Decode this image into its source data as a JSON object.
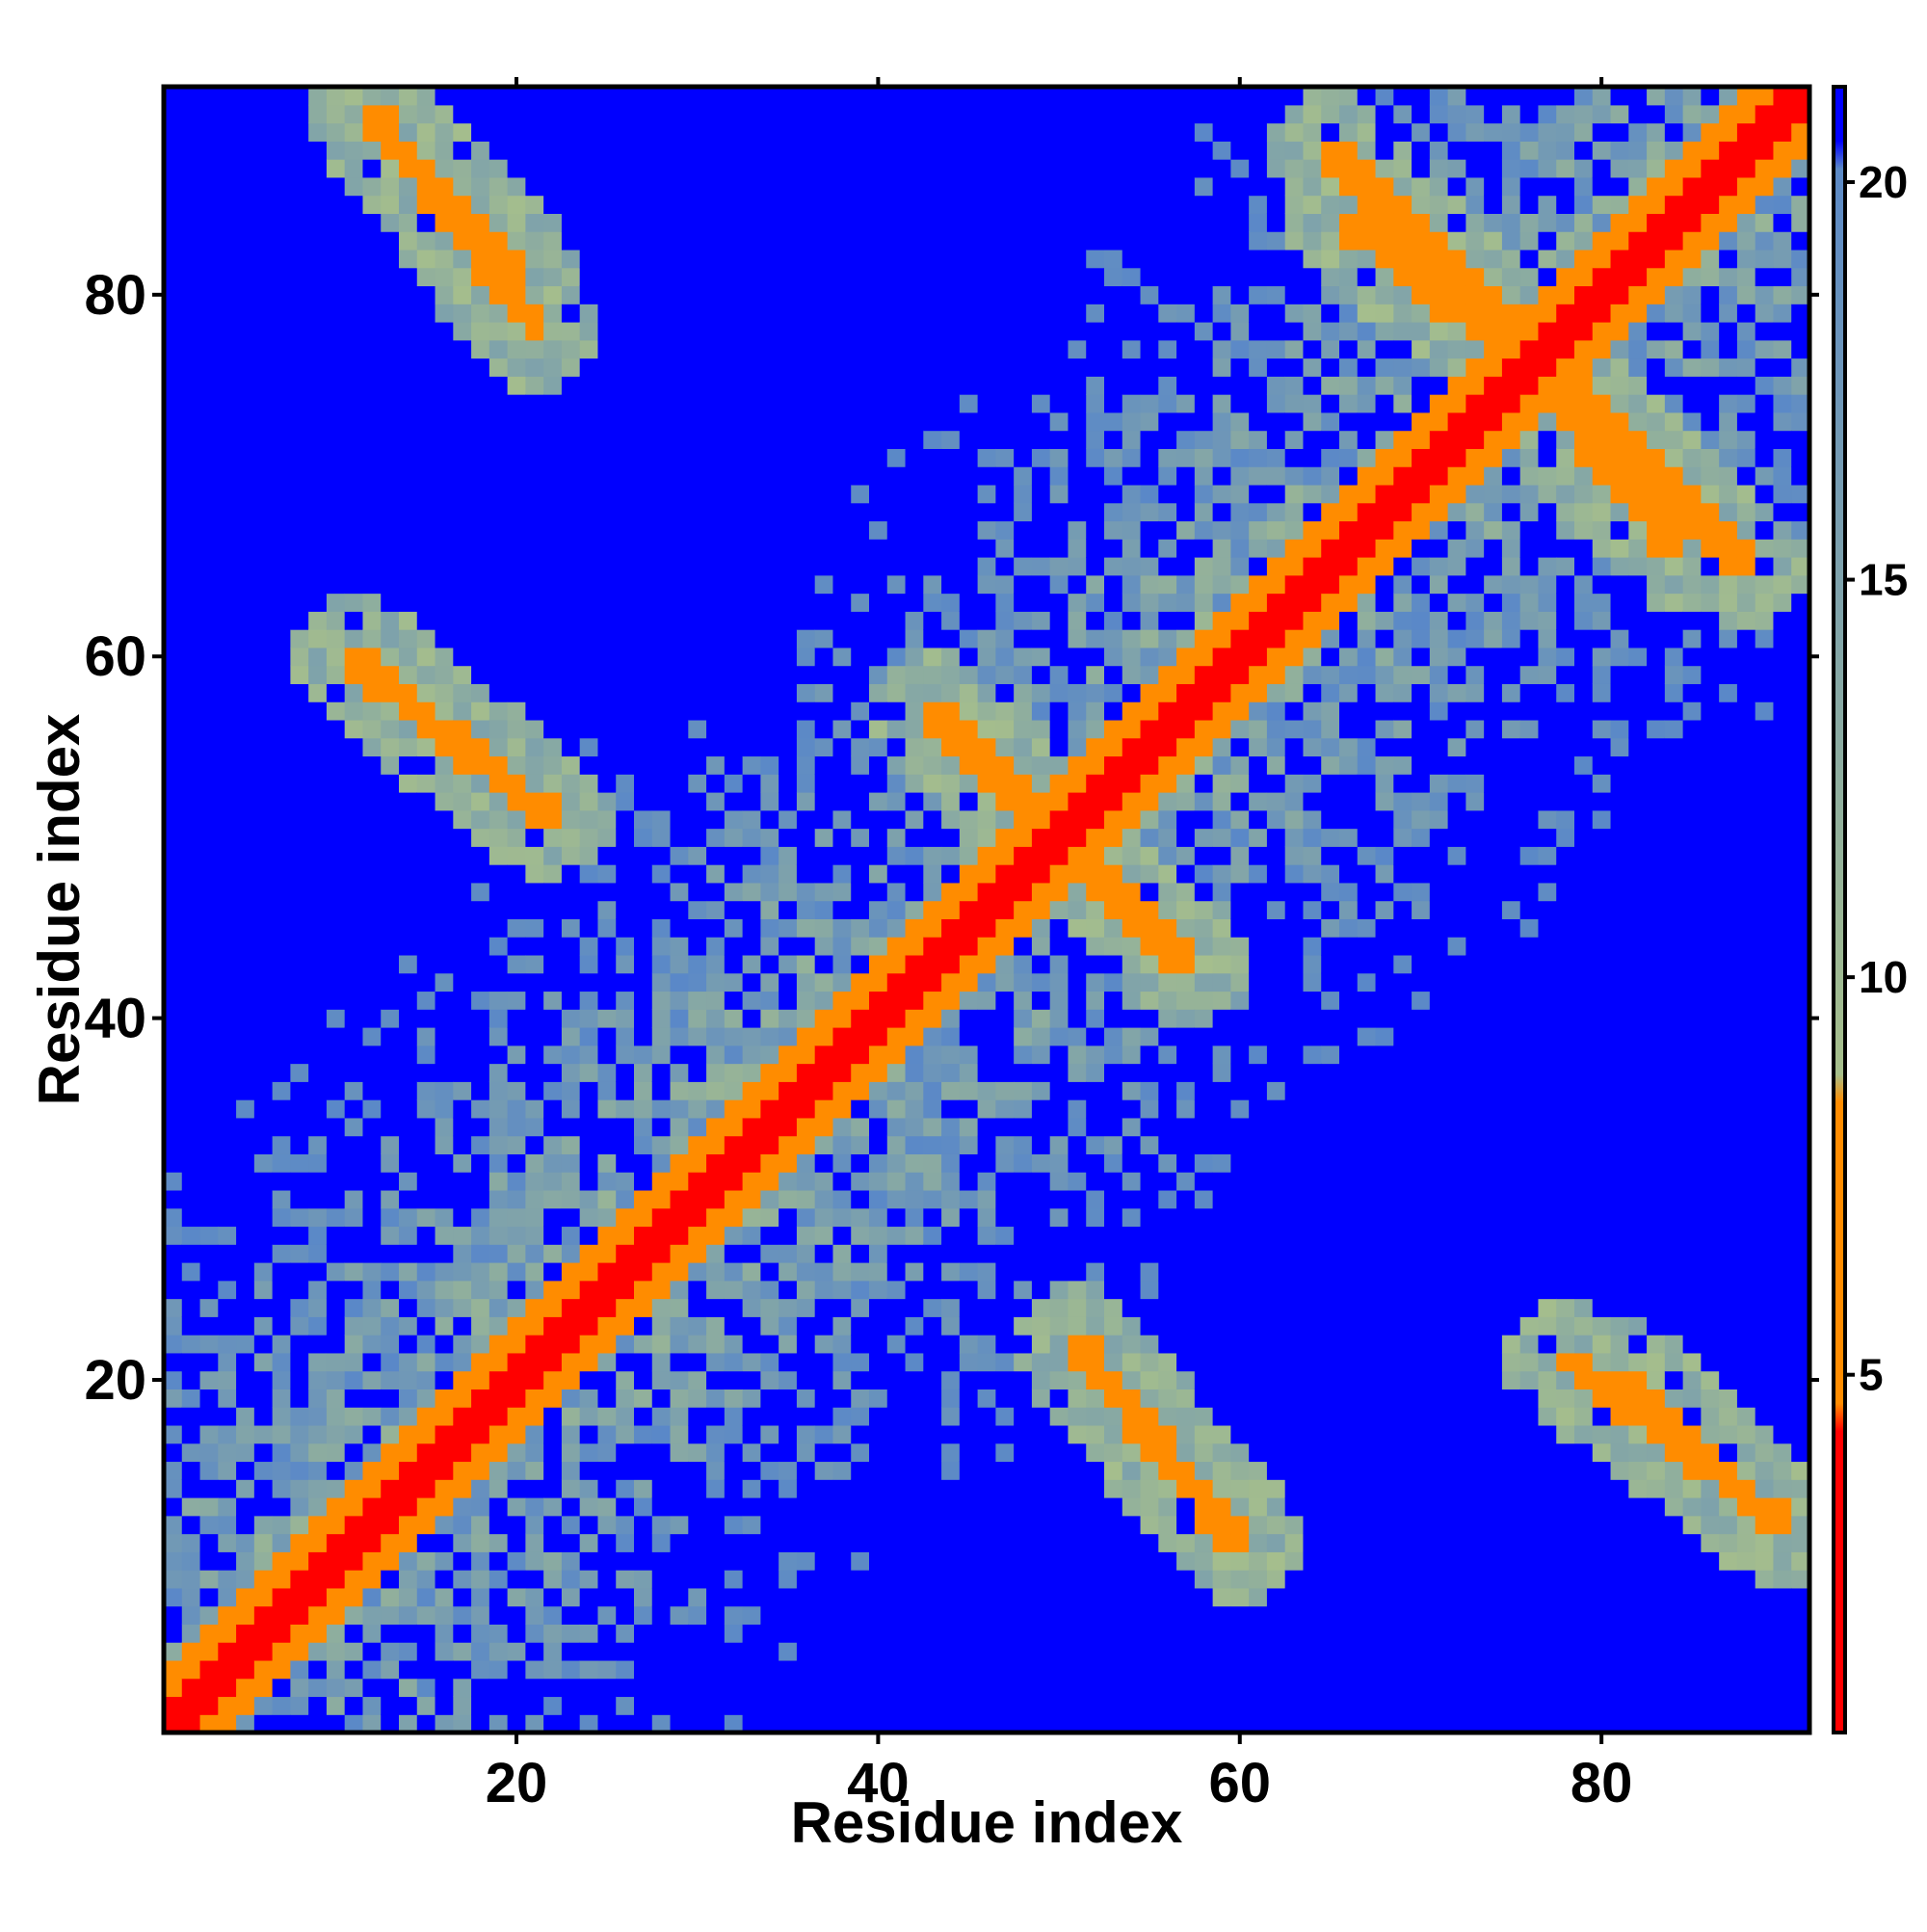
{
  "chart_data": {
    "type": "heatmap",
    "title": "",
    "xlabel": "Residue index",
    "ylabel": "Residue index",
    "n_residues": 91,
    "xlim": [
      1,
      91
    ],
    "ylim": [
      1,
      91
    ],
    "x_ticks": [
      20,
      40,
      60,
      80
    ],
    "y_ticks": [
      20,
      40,
      60,
      80
    ],
    "colorbar": {
      "ticks": [
        5,
        10,
        15,
        20
      ],
      "range": [
        0.5,
        21.2
      ],
      "colors": {
        "near": "#ff0000",
        "close": "#ff8c00",
        "mid": "#a8c08a",
        "far": "#5a88c8",
        "background": "#0000ff"
      }
    },
    "pattern": {
      "main_diagonal": true,
      "secondary_bands": [
        {
          "from": [
            13,
            89
          ],
          "to": [
            21,
            78
          ],
          "value": 6.5
        },
        {
          "from": [
            11,
            60
          ],
          "to": [
            22,
            51
          ],
          "value": 6.5
        },
        {
          "from": [
            43,
            57
          ],
          "to": [
            50,
            50
          ],
          "value": 6.5
        },
        {
          "from": [
            51,
            49
          ],
          "to": [
            57,
            43
          ],
          "value": 6.5
        },
        {
          "from": [
            51,
            22
          ],
          "to": [
            59,
            12
          ],
          "value": 6.5
        },
        {
          "from": [
            65,
            88
          ],
          "to": [
            75,
            78
          ],
          "value": 6.5
        },
        {
          "from": [
            76,
            76
          ],
          "to": [
            84,
            66
          ],
          "value": 6.5
        },
        {
          "from": [
            81,
            20
          ],
          "to": [
            90,
            12
          ],
          "value": 6.5
        }
      ]
    }
  }
}
